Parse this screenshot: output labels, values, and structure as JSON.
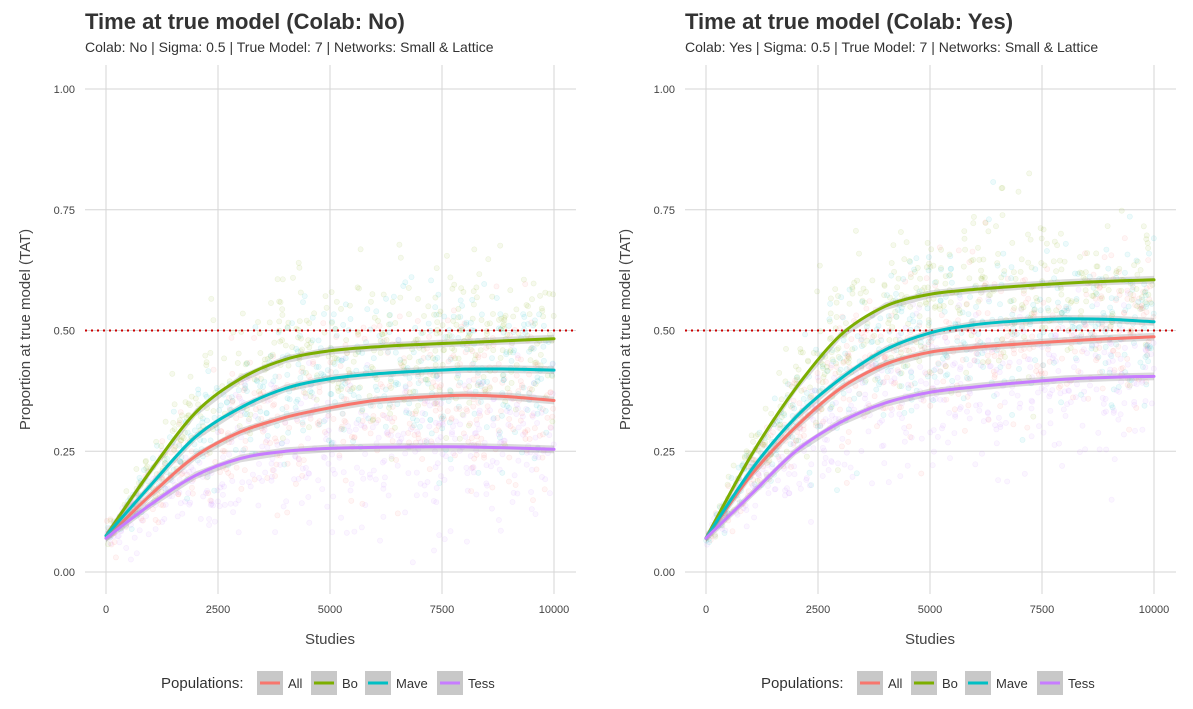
{
  "chart_data": [
    {
      "type": "scatter",
      "title": "Time at true model (Colab: No)",
      "subtitle": "Colab: No | Sigma: 0.5 | True Model: 7 | Networks: Small & Lattice",
      "xlabel": "Studies",
      "ylabel": "Proportion at true model (TAT)",
      "xlim": [
        0,
        10000
      ],
      "ylim": [
        0,
        1
      ],
      "x_ticks": [
        0,
        2500,
        5000,
        7500,
        10000
      ],
      "y_ticks": [
        0.0,
        0.25,
        0.5,
        0.75,
        1.0
      ],
      "x_tick_labels": [
        "0",
        "2500",
        "5000",
        "7500",
        "10000"
      ],
      "y_tick_labels": [
        "0.00",
        "0.25",
        "0.50",
        "0.75",
        "1.00"
      ],
      "reference_line": {
        "y": 0.5,
        "style": "dotted",
        "color": "#cc0000"
      },
      "grid": true,
      "legend_title": "Populations:",
      "legend_position": "bottom",
      "series": [
        {
          "name": "All",
          "color": "#F8766D",
          "x": [
            0,
            1000,
            2000,
            3000,
            4000,
            5000,
            6000,
            7000,
            8000,
            9000,
            10000
          ],
          "y": [
            0.07,
            0.16,
            0.24,
            0.29,
            0.32,
            0.34,
            0.355,
            0.362,
            0.366,
            0.363,
            0.355
          ]
        },
        {
          "name": "Bo",
          "color": "#7CAE00",
          "x": [
            0,
            1000,
            2000,
            3000,
            4000,
            5000,
            6000,
            7000,
            8000,
            9000,
            10000
          ],
          "y": [
            0.075,
            0.21,
            0.33,
            0.4,
            0.44,
            0.458,
            0.466,
            0.471,
            0.475,
            0.479,
            0.483
          ]
        },
        {
          "name": "Mave",
          "color": "#00BFC4",
          "x": [
            0,
            1000,
            2000,
            3000,
            4000,
            5000,
            6000,
            7000,
            8000,
            9000,
            10000
          ],
          "y": [
            0.075,
            0.18,
            0.28,
            0.34,
            0.38,
            0.4,
            0.41,
            0.416,
            0.42,
            0.42,
            0.418
          ]
        },
        {
          "name": "Tess",
          "color": "#C77CFF",
          "x": [
            0,
            1000,
            2000,
            3000,
            4000,
            5000,
            6000,
            7000,
            8000,
            9000,
            10000
          ],
          "y": [
            0.07,
            0.14,
            0.2,
            0.235,
            0.25,
            0.256,
            0.258,
            0.259,
            0.259,
            0.257,
            0.254
          ]
        }
      ]
    },
    {
      "type": "scatter",
      "title": "Time at true model (Colab: Yes)",
      "subtitle": "Colab: Yes | Sigma: 0.5 | True Model: 7 | Networks: Small & Lattice",
      "xlabel": "Studies",
      "ylabel": "Proportion at true model (TAT)",
      "xlim": [
        0,
        10000
      ],
      "ylim": [
        0,
        1
      ],
      "x_ticks": [
        0,
        2500,
        5000,
        7500,
        10000
      ],
      "y_ticks": [
        0.0,
        0.25,
        0.5,
        0.75,
        1.0
      ],
      "x_tick_labels": [
        "0",
        "2500",
        "5000",
        "7500",
        "10000"
      ],
      "y_tick_labels": [
        "0.00",
        "0.25",
        "0.50",
        "0.75",
        "1.00"
      ],
      "reference_line": {
        "y": 0.5,
        "style": "dotted",
        "color": "#cc0000"
      },
      "grid": true,
      "legend_title": "Populations:",
      "legend_position": "bottom",
      "series": [
        {
          "name": "All",
          "color": "#F8766D",
          "x": [
            0,
            1000,
            2000,
            3000,
            4000,
            5000,
            6000,
            7000,
            8000,
            9000,
            10000
          ],
          "y": [
            0.07,
            0.2,
            0.3,
            0.38,
            0.43,
            0.455,
            0.465,
            0.472,
            0.478,
            0.483,
            0.487
          ]
        },
        {
          "name": "Bo",
          "color": "#7CAE00",
          "x": [
            0,
            1000,
            2000,
            3000,
            4000,
            5000,
            6000,
            7000,
            8000,
            9000,
            10000
          ],
          "y": [
            0.07,
            0.24,
            0.38,
            0.49,
            0.55,
            0.575,
            0.585,
            0.592,
            0.598,
            0.602,
            0.605
          ]
        },
        {
          "name": "Mave",
          "color": "#00BFC4",
          "x": [
            0,
            1000,
            2000,
            3000,
            4000,
            5000,
            6000,
            7000,
            8000,
            9000,
            10000
          ],
          "y": [
            0.07,
            0.21,
            0.32,
            0.4,
            0.46,
            0.495,
            0.512,
            0.52,
            0.524,
            0.523,
            0.518
          ]
        },
        {
          "name": "Tess",
          "color": "#C77CFF",
          "x": [
            0,
            1000,
            2000,
            3000,
            4000,
            5000,
            6000,
            7000,
            8000,
            9000,
            10000
          ],
          "y": [
            0.07,
            0.16,
            0.25,
            0.31,
            0.35,
            0.372,
            0.383,
            0.392,
            0.399,
            0.403,
            0.405
          ]
        }
      ]
    }
  ]
}
